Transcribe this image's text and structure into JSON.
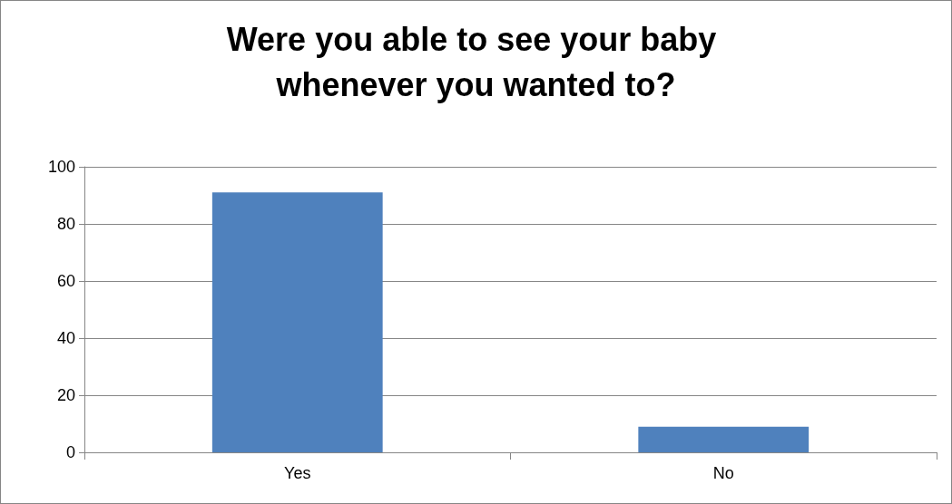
{
  "chart_data": {
    "type": "bar",
    "title": "Were you able to see your baby whenever you wanted to?",
    "categories": [
      "Yes",
      "No"
    ],
    "values": [
      91,
      9
    ],
    "color": "#4f81bd",
    "ylim": [
      0,
      100
    ],
    "yticks": [
      0,
      20,
      40,
      60,
      80,
      100
    ],
    "grid": "y"
  }
}
